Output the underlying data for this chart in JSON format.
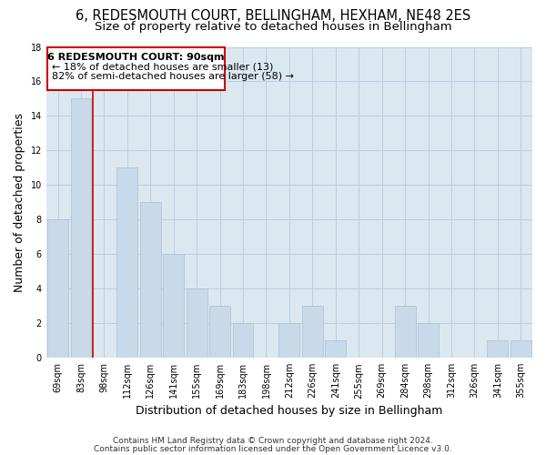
{
  "title": "6, REDESMOUTH COURT, BELLINGHAM, HEXHAM, NE48 2ES",
  "subtitle": "Size of property relative to detached houses in Bellingham",
  "xlabel": "Distribution of detached houses by size in Bellingham",
  "ylabel": "Number of detached properties",
  "categories": [
    "69sqm",
    "83sqm",
    "98sqm",
    "112sqm",
    "126sqm",
    "141sqm",
    "155sqm",
    "169sqm",
    "183sqm",
    "198sqm",
    "212sqm",
    "226sqm",
    "241sqm",
    "255sqm",
    "269sqm",
    "284sqm",
    "298sqm",
    "312sqm",
    "326sqm",
    "341sqm",
    "355sqm"
  ],
  "values": [
    8,
    15,
    0,
    11,
    9,
    6,
    4,
    3,
    2,
    0,
    2,
    3,
    1,
    0,
    0,
    3,
    2,
    0,
    0,
    1,
    1
  ],
  "bar_color": "#c8daea",
  "highlight_color": "#cc0000",
  "ylim": [
    0,
    18
  ],
  "yticks": [
    0,
    2,
    4,
    6,
    8,
    10,
    12,
    14,
    16,
    18
  ],
  "annotation_title": "6 REDESMOUTH COURT: 90sqm",
  "annotation_line1": "← 18% of detached houses are smaller (13)",
  "annotation_line2": "82% of semi-detached houses are larger (58) →",
  "annotation_box_color": "#ffffff",
  "annotation_box_edge": "#cc0000",
  "footer1": "Contains HM Land Registry data © Crown copyright and database right 2024.",
  "footer2": "Contains public sector information licensed under the Open Government Licence v3.0.",
  "background_color": "#ffffff",
  "plot_bg_color": "#dce8f0",
  "grid_color": "#b8cfe0",
  "title_fontsize": 10.5,
  "subtitle_fontsize": 9.5,
  "axis_label_fontsize": 9,
  "tick_fontsize": 7,
  "annotation_fontsize": 8,
  "footer_fontsize": 6.5
}
